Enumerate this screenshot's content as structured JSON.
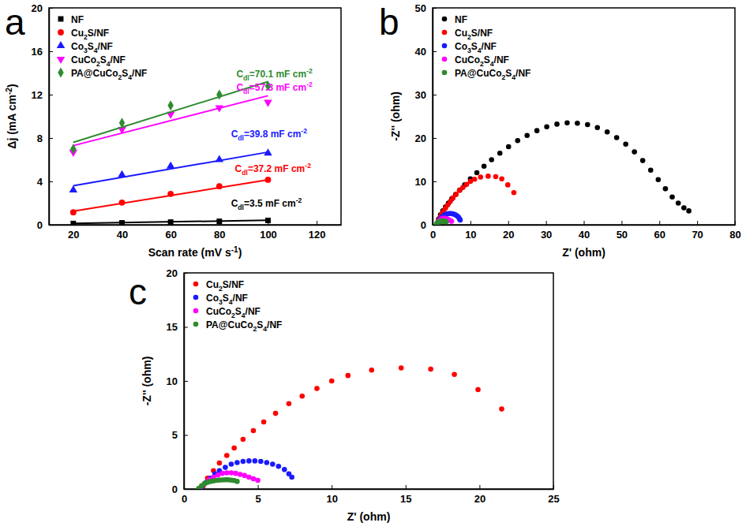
{
  "chart_data": [
    {
      "type": "scatter",
      "title": "a",
      "x_label": "Scan rate (mV s-1)",
      "y_label": "Δj (mA cm-2)",
      "x": [
        20,
        40,
        60,
        80,
        100
      ],
      "xlim": [
        10,
        130
      ],
      "xticks": [
        20,
        40,
        60,
        80,
        100,
        120
      ],
      "ylim": [
        0,
        20
      ],
      "yticks": [
        0,
        4,
        8,
        12,
        16,
        20
      ],
      "legend": "upper left",
      "series": [
        {
          "name": "NF",
          "color": "#000000",
          "marker": "square",
          "values": [
            0.12,
            0.18,
            0.25,
            0.32,
            0.4
          ],
          "fit": {
            "x": [
              20,
              100
            ],
            "values": [
              0.12,
              0.42
            ]
          }
        },
        {
          "name": "Cu2S/NF",
          "color": "#ff0000",
          "marker": "circle",
          "values": [
            1.15,
            2.05,
            2.85,
            3.55,
            4.15
          ],
          "fit": {
            "x": [
              20,
              100
            ],
            "values": [
              1.25,
              4.15
            ]
          }
        },
        {
          "name": "Co3S4/NF",
          "color": "#1a1aff",
          "marker": "triangle-up",
          "values": [
            3.2,
            4.6,
            5.4,
            6.0,
            6.6
          ],
          "fit": {
            "x": [
              20,
              100
            ],
            "values": [
              3.6,
              6.7
            ]
          }
        },
        {
          "name": "CuCo2S4/NF",
          "color": "#ff00ff",
          "marker": "triangle-down",
          "values": [
            6.7,
            8.8,
            10.2,
            10.8,
            11.3
          ],
          "fit": {
            "x": [
              20,
              100
            ],
            "values": [
              7.3,
              11.9
            ]
          }
        },
        {
          "name": "PA@CuCo2S4/NF",
          "color": "#2e8b2e",
          "marker": "diamond",
          "values": [
            7.0,
            9.4,
            11.0,
            12.0,
            12.8
          ],
          "fit": {
            "x": [
              20,
              100
            ],
            "values": [
              7.6,
              13.2
            ]
          }
        }
      ],
      "annotations": [
        {
          "text": "Cdl=70.1 mF cm-2",
          "x": 87,
          "y": 13.6,
          "color": "#2e8b2e"
        },
        {
          "text": "Cdl=57.3 mF cm-2",
          "x": 87,
          "y": 12.4,
          "color": "#ff00ff"
        },
        {
          "text": "Cdl=39.8 mF cm-2",
          "x": 84.8,
          "y": 8.1,
          "color": "#1a1aff"
        },
        {
          "text": "Cdl=37.2 mF cm-2",
          "x": 86.4,
          "y": 4.9,
          "color": "#ff0000"
        },
        {
          "text": "Cdl=3.5 mF cm-2",
          "x": 84.8,
          "y": 1.7,
          "color": "#000000"
        }
      ]
    },
    {
      "type": "scatter",
      "title": "b",
      "x_label": "Z' (ohm)",
      "y_label": "-Z'' (ohm)",
      "xlim": [
        0,
        80
      ],
      "xticks": [
        0,
        10,
        20,
        30,
        40,
        50,
        60,
        70,
        80
      ],
      "ylim": [
        0,
        50
      ],
      "yticks": [
        0,
        10,
        20,
        30,
        40,
        50
      ],
      "legend": "upper left",
      "series": [
        {
          "name": "NF",
          "color": "#000000",
          "marker": "circle",
          "x": [
            1.2,
            1.6,
            2.1,
            2.7,
            3.4,
            4.2,
            5.1,
            6.1,
            7.2,
            8.5,
            10,
            11.7,
            13.6,
            15.6,
            17.8,
            20.1,
            22.5,
            25,
            27.6,
            30.2,
            32.9,
            35.6,
            38.3,
            41,
            43.6,
            46.2,
            48.7,
            51.1,
            53.4,
            55.6,
            57.7,
            59.7,
            61.6,
            63.4,
            65,
            66.5,
            67.8
          ],
          "values": [
            0.3,
            1.3,
            2.3,
            3.2,
            4.1,
            5.0,
            6.0,
            7.0,
            8.0,
            9.2,
            10.6,
            12.0,
            13.5,
            15.0,
            16.5,
            18.0,
            19.4,
            20.6,
            21.7,
            22.6,
            23.2,
            23.5,
            23.4,
            23.1,
            22.4,
            21.4,
            20.1,
            18.6,
            16.8,
            14.8,
            12.6,
            10.4,
            8.3,
            6.4,
            5.0,
            3.9,
            3.2
          ]
        },
        {
          "name": "Cu2S/NF",
          "color": "#ff0000",
          "marker": "circle",
          "x": [
            1.3,
            1.6,
            2.0,
            2.4,
            2.9,
            3.4,
            4.0,
            4.7,
            5.4,
            6.2,
            7.1,
            8.0,
            9.0,
            10.0,
            11.1,
            12.7,
            14.7,
            16.7,
            18.3,
            19.9,
            21.5
          ],
          "values": [
            0.3,
            1.0,
            1.7,
            2.4,
            3.1,
            3.8,
            4.6,
            5.4,
            6.2,
            7.0,
            7.9,
            8.6,
            9.3,
            10.0,
            10.5,
            11.0,
            11.2,
            11.1,
            10.6,
            9.2,
            7.4
          ]
        },
        {
          "name": "Co3S4/NF",
          "color": "#1a1aff",
          "marker": "circle",
          "x": [
            1.2,
            1.5,
            1.8,
            2.1,
            2.4,
            2.8,
            3.2,
            3.6,
            4.0,
            4.4,
            4.8,
            5.2,
            5.6,
            6.0,
            6.4,
            6.8,
            7.1,
            7.3
          ],
          "values": [
            0.2,
            0.6,
            1.0,
            1.4,
            1.7,
            2.0,
            2.3,
            2.45,
            2.55,
            2.6,
            2.6,
            2.55,
            2.45,
            2.3,
            2.1,
            1.8,
            1.4,
            1.1
          ]
        },
        {
          "name": "CuCo2S4/NF",
          "color": "#ff00ff",
          "marker": "circle",
          "x": [
            1.1,
            1.4,
            1.7,
            2.0,
            2.3,
            2.6,
            2.9,
            3.2,
            3.5,
            3.8,
            4.1,
            4.4,
            4.7,
            5.0
          ],
          "values": [
            0.1,
            0.5,
            0.85,
            1.1,
            1.3,
            1.45,
            1.5,
            1.5,
            1.45,
            1.35,
            1.25,
            1.1,
            0.95,
            0.8
          ]
        },
        {
          "name": "PA@CuCo2S4/NF",
          "color": "#2e8b2e",
          "marker": "circle",
          "x": [
            1.0,
            1.2,
            1.4,
            1.6,
            1.8,
            2.0,
            2.2,
            2.4,
            2.6,
            2.8,
            3.0,
            3.2,
            3.4,
            3.6
          ],
          "values": [
            0.05,
            0.3,
            0.5,
            0.62,
            0.7,
            0.75,
            0.8,
            0.82,
            0.84,
            0.85,
            0.85,
            0.82,
            0.78,
            0.7
          ]
        }
      ]
    },
    {
      "type": "scatter",
      "title": "c",
      "x_label": "Z' (ohm)",
      "y_label": "-Z'' (ohm)",
      "xlim": [
        0,
        25
      ],
      "xticks": [
        0,
        5,
        10,
        15,
        20,
        25
      ],
      "ylim": [
        0,
        20
      ],
      "yticks": [
        0,
        5,
        10,
        15,
        20
      ],
      "legend": "upper left",
      "series": [
        {
          "name": "Cu2S/NF",
          "color": "#ff0000",
          "marker": "circle",
          "x": [
            1.3,
            1.6,
            2.0,
            2.4,
            2.9,
            3.4,
            4.0,
            4.7,
            5.4,
            6.2,
            7.1,
            8.0,
            9.0,
            10.0,
            11.1,
            12.7,
            14.7,
            16.7,
            18.3,
            19.9,
            21.5
          ],
          "values": [
            0.3,
            1.0,
            1.7,
            2.4,
            3.1,
            3.8,
            4.6,
            5.4,
            6.2,
            7.0,
            7.9,
            8.6,
            9.3,
            10.0,
            10.5,
            11.0,
            11.2,
            11.1,
            10.6,
            9.2,
            7.4
          ]
        },
        {
          "name": "Co3S4/NF",
          "color": "#1a1aff",
          "marker": "circle",
          "x": [
            1.2,
            1.5,
            1.8,
            2.1,
            2.4,
            2.8,
            3.2,
            3.6,
            4.0,
            4.4,
            4.8,
            5.2,
            5.6,
            6.0,
            6.4,
            6.8,
            7.1,
            7.3
          ],
          "values": [
            0.2,
            0.6,
            1.0,
            1.4,
            1.7,
            2.0,
            2.3,
            2.45,
            2.55,
            2.6,
            2.6,
            2.55,
            2.45,
            2.3,
            2.1,
            1.8,
            1.4,
            1.1
          ]
        },
        {
          "name": "CuCo2S4/NF",
          "color": "#ff00ff",
          "marker": "circle",
          "x": [
            1.1,
            1.4,
            1.7,
            2.0,
            2.3,
            2.6,
            2.9,
            3.2,
            3.5,
            3.8,
            4.1,
            4.4,
            4.7,
            5.0
          ],
          "values": [
            0.1,
            0.5,
            0.85,
            1.1,
            1.3,
            1.45,
            1.5,
            1.5,
            1.45,
            1.35,
            1.25,
            1.1,
            0.95,
            0.8
          ]
        },
        {
          "name": "PA@CuCo2S4/NF",
          "color": "#2e8b2e",
          "marker": "circle",
          "x": [
            1.0,
            1.2,
            1.4,
            1.6,
            1.8,
            2.0,
            2.2,
            2.4,
            2.6,
            2.8,
            3.0,
            3.2,
            3.4,
            3.6
          ],
          "values": [
            0.05,
            0.3,
            0.5,
            0.62,
            0.7,
            0.75,
            0.8,
            0.82,
            0.84,
            0.85,
            0.85,
            0.82,
            0.78,
            0.7
          ]
        }
      ]
    }
  ]
}
